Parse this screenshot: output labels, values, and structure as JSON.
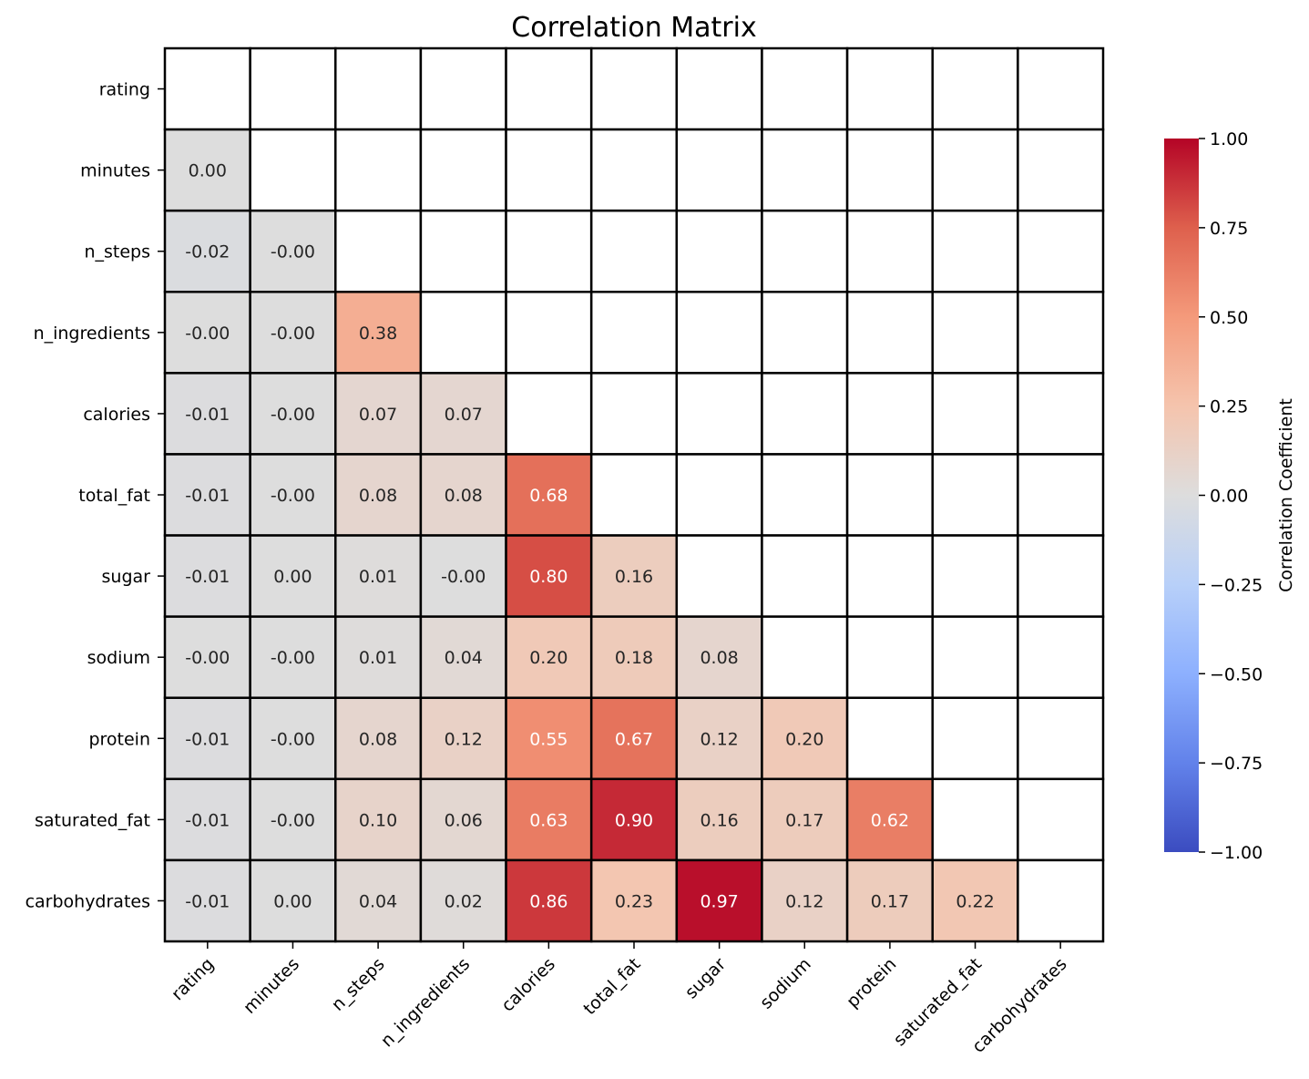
{
  "chart_data": {
    "type": "heatmap",
    "title": "Correlation Matrix",
    "variables": [
      "rating",
      "minutes",
      "n_steps",
      "n_ingredients",
      "calories",
      "total_fat",
      "sugar",
      "sodium",
      "protein",
      "saturated_fat",
      "carbohydrates"
    ],
    "mask": "upper triangle including diagonal",
    "matrix": [
      [
        null,
        null,
        null,
        null,
        null,
        null,
        null,
        null,
        null,
        null,
        null
      ],
      [
        0.0,
        null,
        null,
        null,
        null,
        null,
        null,
        null,
        null,
        null,
        null
      ],
      [
        -0.02,
        -0.0,
        null,
        null,
        null,
        null,
        null,
        null,
        null,
        null,
        null
      ],
      [
        -0.0,
        -0.0,
        0.38,
        null,
        null,
        null,
        null,
        null,
        null,
        null,
        null
      ],
      [
        -0.01,
        -0.0,
        0.07,
        0.07,
        null,
        null,
        null,
        null,
        null,
        null,
        null
      ],
      [
        -0.01,
        -0.0,
        0.08,
        0.08,
        0.68,
        null,
        null,
        null,
        null,
        null,
        null
      ],
      [
        -0.01,
        0.0,
        0.01,
        -0.0,
        0.8,
        0.16,
        null,
        null,
        null,
        null,
        null
      ],
      [
        -0.0,
        -0.0,
        0.01,
        0.04,
        0.2,
        0.18,
        0.08,
        null,
        null,
        null,
        null
      ],
      [
        -0.01,
        -0.0,
        0.08,
        0.12,
        0.55,
        0.67,
        0.12,
        0.2,
        null,
        null,
        null
      ],
      [
        -0.01,
        -0.0,
        0.1,
        0.06,
        0.63,
        0.9,
        0.16,
        0.17,
        0.62,
        null,
        null
      ],
      [
        -0.01,
        0.0,
        0.04,
        0.02,
        0.86,
        0.23,
        0.97,
        0.12,
        0.17,
        0.22,
        null
      ]
    ],
    "labels": [
      [
        null,
        null,
        null,
        null,
        null,
        null,
        null,
        null,
        null,
        null,
        null
      ],
      [
        "0.00",
        null,
        null,
        null,
        null,
        null,
        null,
        null,
        null,
        null,
        null
      ],
      [
        "-0.02",
        "-0.00",
        null,
        null,
        null,
        null,
        null,
        null,
        null,
        null,
        null
      ],
      [
        "-0.00",
        "-0.00",
        "0.38",
        null,
        null,
        null,
        null,
        null,
        null,
        null,
        null
      ],
      [
        "-0.01",
        "-0.00",
        "0.07",
        "0.07",
        null,
        null,
        null,
        null,
        null,
        null,
        null
      ],
      [
        "-0.01",
        "-0.00",
        "0.08",
        "0.08",
        "0.68",
        null,
        null,
        null,
        null,
        null,
        null
      ],
      [
        "-0.01",
        "0.00",
        "0.01",
        "-0.00",
        "0.80",
        "0.16",
        null,
        null,
        null,
        null,
        null
      ],
      [
        "-0.00",
        "-0.00",
        "0.01",
        "0.04",
        "0.20",
        "0.18",
        "0.08",
        null,
        null,
        null,
        null
      ],
      [
        "-0.01",
        "-0.00",
        "0.08",
        "0.12",
        "0.55",
        "0.67",
        "0.12",
        "0.20",
        null,
        null,
        null
      ],
      [
        "-0.01",
        "-0.00",
        "0.10",
        "0.06",
        "0.63",
        "0.90",
        "0.16",
        "0.17",
        "0.62",
        null,
        null
      ],
      [
        "-0.01",
        "0.00",
        "0.04",
        "0.02",
        "0.86",
        "0.23",
        "0.97",
        "0.12",
        "0.17",
        "0.22",
        null
      ]
    ],
    "colormap": "coolwarm",
    "vmin": -1.0,
    "vmax": 1.0,
    "colorbar": {
      "label": "Correlation Coefficient",
      "ticks": [
        1.0,
        0.75,
        0.5,
        0.25,
        0.0,
        -0.25,
        -0.5,
        -0.75,
        -1.0
      ],
      "tick_labels": [
        "1.00",
        "0.75",
        "0.50",
        "0.25",
        "0.00",
        "−0.25",
        "−0.50",
        "−0.75",
        "−1.00"
      ]
    },
    "grid": true,
    "colors": {
      "cell_border": "#000000",
      "light_text": "#ffffff",
      "dark_text": "#262626"
    }
  }
}
